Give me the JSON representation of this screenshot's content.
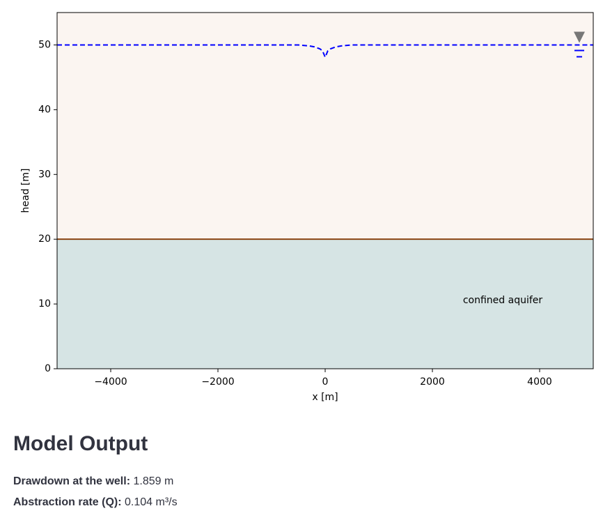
{
  "chart_data": {
    "type": "line",
    "x": [
      -5000,
      -1000,
      -500,
      -300,
      -200,
      -100,
      -50,
      0,
      50,
      100,
      200,
      300,
      500,
      1000,
      5000
    ],
    "values": [
      50,
      50,
      50,
      49.85,
      49.7,
      49.4,
      49.1,
      48.1,
      49.1,
      49.4,
      49.7,
      49.85,
      50,
      50,
      50
    ],
    "color": "#0000ff",
    "xlim": [
      -5000,
      5000
    ],
    "xticks": [
      {
        "value": -4000,
        "label": "−4000"
      },
      {
        "value": -2000,
        "label": "−2000"
      },
      0,
      2000,
      4000
    ],
    "ylim": [
      0,
      55
    ],
    "yticks": [
      0,
      10,
      20,
      30,
      40,
      50
    ],
    "xlabel": "x [m]",
    "ylabel": "head [m]",
    "aquifer_top": 20,
    "aquifer_color": "#d6e4e4",
    "aquifer_line_color": "#8b4513",
    "background_color": "#fbf5f1",
    "annotation": "confined aquifer"
  },
  "section": {
    "title": "Model Output",
    "items": [
      {
        "label": "Drawdown at the well:",
        "value": "1.859 m"
      },
      {
        "label": "Abstraction rate (Q):",
        "value": "0.104 m³/s"
      }
    ]
  }
}
